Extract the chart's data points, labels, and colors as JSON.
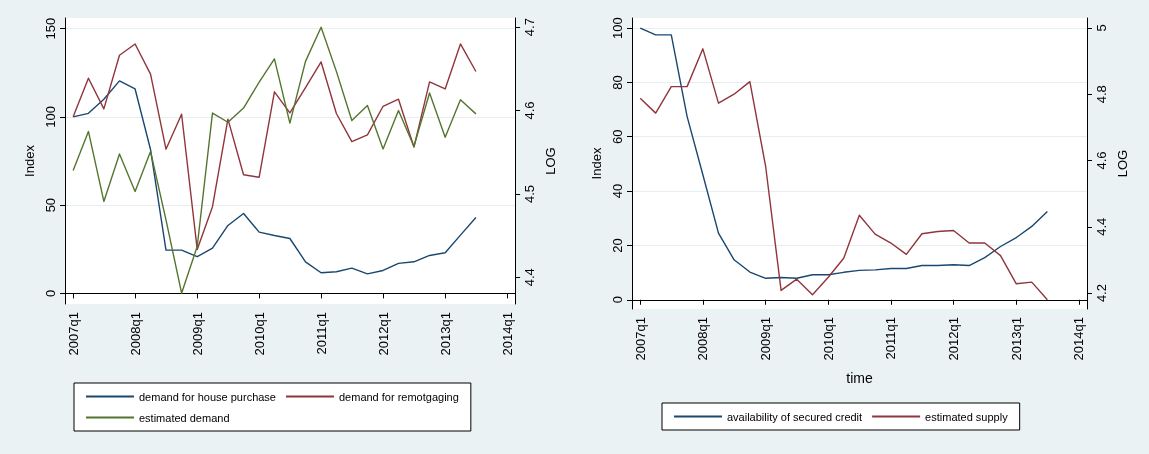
{
  "chart_data": [
    {
      "type": "line",
      "ylabel": "Index",
      "y2label": "LOG",
      "x": [
        "2007-01",
        "2007-04",
        "2007-07",
        "2007-10",
        "2008-01",
        "2008-04",
        "2008-07",
        "2008-10",
        "2009-01",
        "2009-04",
        "2009-07",
        "2009-10",
        "2010-01",
        "2010-04",
        "2010-07",
        "2010-10",
        "2011-01",
        "2011-04",
        "2011-07",
        "2011-10",
        "2012-01",
        "2012-04",
        "2012-07",
        "2012-10",
        "2013-01",
        "2013-04",
        "2013-07"
      ],
      "xlim": [
        "2006-11-14",
        "2014-02-17"
      ],
      "xticks": [
        {
          "value": "2007-01",
          "label": "2007q1"
        },
        {
          "value": "2008-01",
          "label": "2008q1"
        },
        {
          "value": "2009-01",
          "label": "2009q1"
        },
        {
          "value": "2010-01",
          "label": "2010q1"
        },
        {
          "value": "2011-01",
          "label": "2011q1"
        },
        {
          "value": "2012-01",
          "label": "2012q1"
        },
        {
          "value": "2013-01",
          "label": "2013q1"
        },
        {
          "value": "2014-01",
          "label": "2014q1"
        }
      ],
      "ylim": [
        -6,
        156
      ],
      "yticks": [
        0,
        50,
        100,
        150
      ],
      "y2lim": [
        4.368,
        4.711
      ],
      "y2ticks": [
        4.4,
        4.5,
        4.6,
        4.7
      ],
      "grid": "y",
      "legend": "bottom",
      "marker": "none",
      "line_style": "solid",
      "series": [
        {
          "name": "demand for house purchase",
          "color": "#1a476f",
          "values": [
            100,
            102,
            110,
            120.4,
            115.8,
            81.5,
            24.5,
            24.5,
            20.8,
            25.7,
            38.5,
            45.3,
            34.7,
            32.8,
            31.1,
            17.9,
            11.7,
            12.3,
            14.3,
            11.1,
            13,
            17,
            17.9,
            21.5,
            23,
            33,
            43
          ]
        },
        {
          "name": "demand for remotgaging",
          "color": "#90353b",
          "values": [
            100,
            121.9,
            104.5,
            134.9,
            141.3,
            124.2,
            81.7,
            101.5,
            24.9,
            49.1,
            98.7,
            67.2,
            65.8,
            114.2,
            102.3,
            116.6,
            131.1,
            101.9,
            86,
            89.8,
            106,
            110,
            82.9,
            119.8,
            115.8,
            141.3,
            125.7
          ]
        },
        {
          "name": "estimated demand",
          "color": "#55752f",
          "axis": "y2",
          "values": [
            4.528,
            4.575,
            4.491,
            4.548,
            4.503,
            4.551,
            4.469,
            4.381,
            4.437,
            4.597,
            4.586,
            4.603,
            4.634,
            4.662,
            4.585,
            4.659,
            4.7,
            4.647,
            4.588,
            4.606,
            4.554,
            4.6,
            4.557,
            4.621,
            4.568,
            4.613,
            4.596
          ]
        }
      ]
    },
    {
      "type": "line",
      "xlabel": "time",
      "ylabel": "Index",
      "y2label": "LOG",
      "x": [
        "2007-01",
        "2007-04",
        "2007-07",
        "2007-10",
        "2008-01",
        "2008-04",
        "2008-07",
        "2008-10",
        "2009-01",
        "2009-04",
        "2009-07",
        "2009-10",
        "2010-01",
        "2010-04",
        "2010-07",
        "2010-10",
        "2011-01",
        "2011-04",
        "2011-07",
        "2011-10",
        "2012-01",
        "2012-04",
        "2012-07",
        "2012-10",
        "2013-01",
        "2013-04",
        "2013-07"
      ],
      "xlim": [
        "2006-11-14",
        "2014-02-17"
      ],
      "xticks": [
        {
          "value": "2007-01",
          "label": "2007q1"
        },
        {
          "value": "2008-01",
          "label": "2008q1"
        },
        {
          "value": "2009-01",
          "label": "2009q1"
        },
        {
          "value": "2010-01",
          "label": "2010q1"
        },
        {
          "value": "2011-01",
          "label": "2011q1"
        },
        {
          "value": "2012-01",
          "label": "2012q1"
        },
        {
          "value": "2013-01",
          "label": "2013q1"
        },
        {
          "value": "2014-01",
          "label": "2014q1"
        }
      ],
      "ylim": [
        -3.4,
        103.7
      ],
      "yticks": [
        0,
        20,
        40,
        60,
        80,
        100
      ],
      "y2lim": [
        4.152,
        5.03
      ],
      "y2ticks": [
        4.2,
        4.4,
        4.6,
        4.8,
        5
      ],
      "grid": "y",
      "legend": "bottom",
      "marker": "none",
      "line_style": "solid",
      "series": [
        {
          "name": "availability of secured credit",
          "color": "#1a476f",
          "values": [
            100,
            97.5,
            97.5,
            67.5,
            46,
            24.5,
            14.7,
            10.2,
            7.9,
            8.2,
            7.9,
            9.2,
            9.2,
            10.1,
            10.8,
            11,
            11.5,
            11.5,
            12.6,
            12.6,
            12.9,
            12.6,
            15.5,
            19.6,
            22.9,
            27,
            32.5
          ]
        },
        {
          "name": "estimated supply",
          "color": "#90353b",
          "axis": "y2",
          "values": [
            4.788,
            4.743,
            4.823,
            4.823,
            4.937,
            4.773,
            4.8,
            4.838,
            4.582,
            4.208,
            4.242,
            4.195,
            4.248,
            4.305,
            4.435,
            4.378,
            4.351,
            4.317,
            4.379,
            4.386,
            4.389,
            4.351,
            4.351,
            4.313,
            4.228,
            4.233,
            4.18
          ]
        }
      ]
    }
  ]
}
